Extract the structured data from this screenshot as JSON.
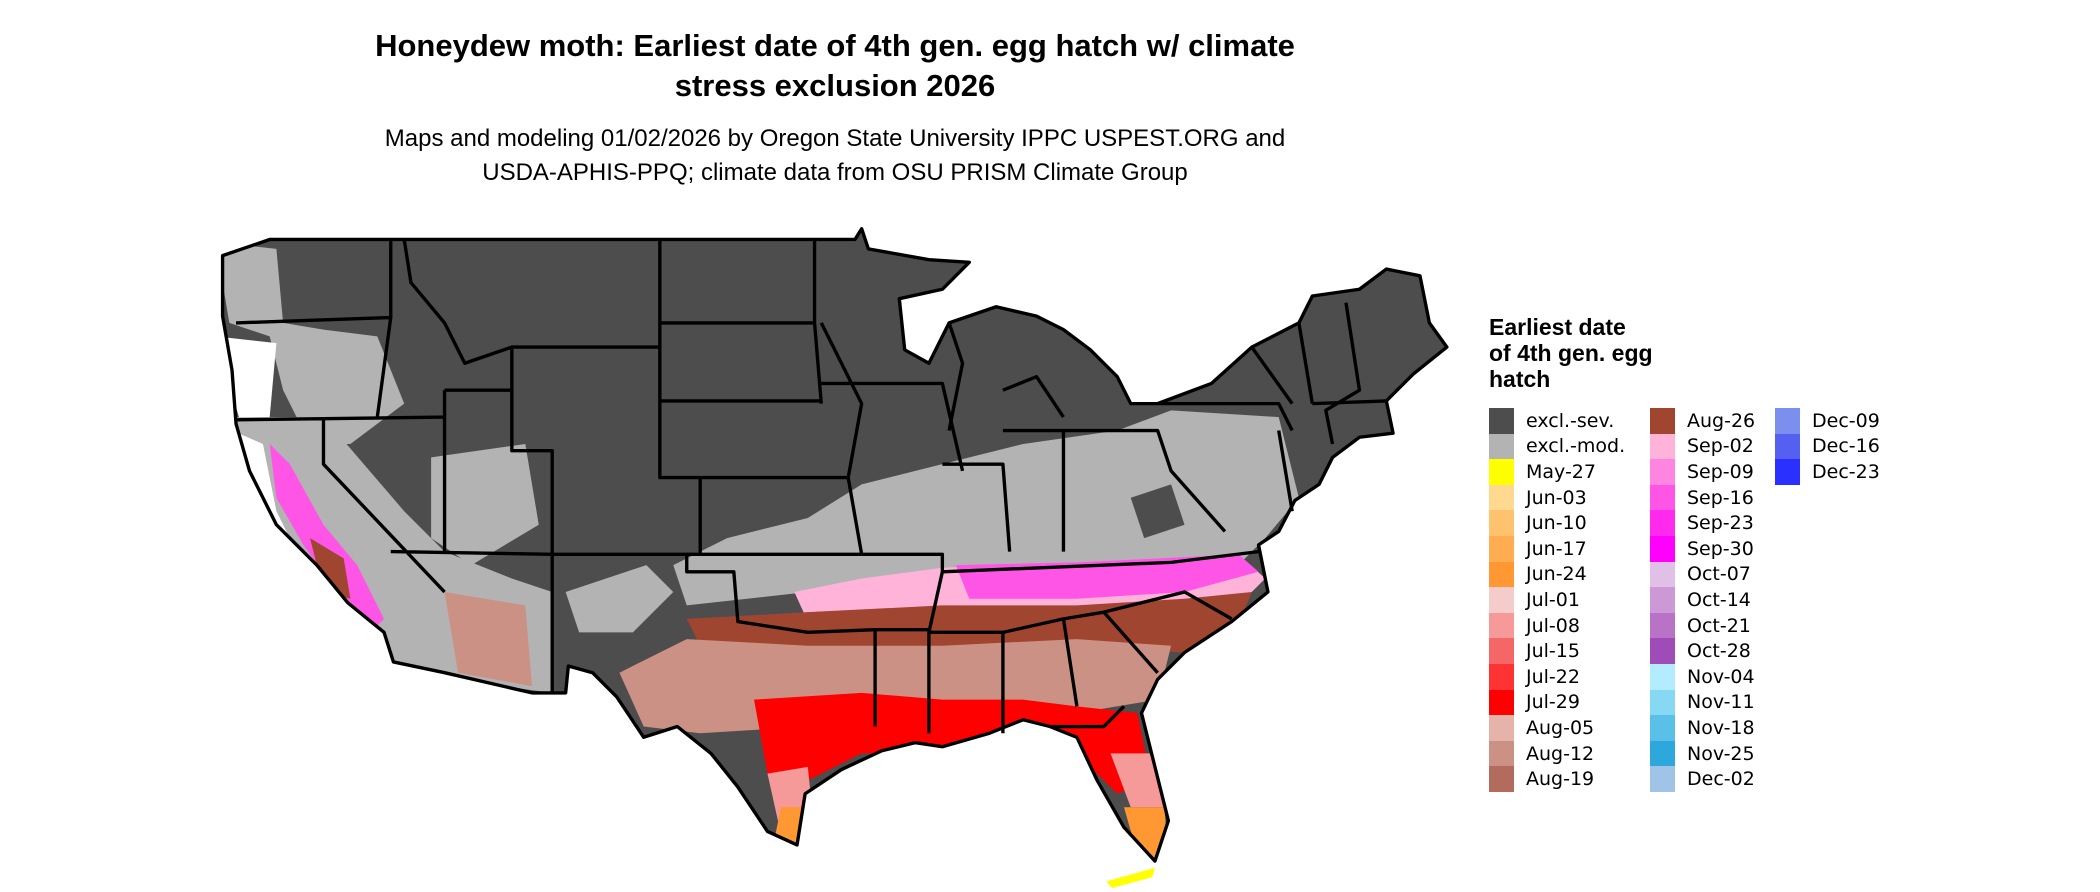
{
  "title": "Honeydew moth: Earliest date of 4th gen. egg hatch w/ climate stress exclusion 2026",
  "title_lines": [
    "Honeydew moth: Earliest date of 4th gen. egg hatch w/ climate",
    "stress exclusion 2026"
  ],
  "subtitle_lines": [
    "Maps and modeling 01/02/2026 by Oregon State University IPPC USPEST.ORG and",
    "USDA-APHIS-PPQ; climate data from OSU PRISM Climate Group"
  ],
  "legend": {
    "title_lines": [
      "Earliest date",
      "of 4th gen. egg",
      "hatch"
    ],
    "columns": [
      [
        {
          "label": "excl.-sev.",
          "color": "#4d4d4d"
        },
        {
          "label": "excl.-mod.",
          "color": "#b3b3b3"
        },
        {
          "label": "May-27",
          "color": "#ffff00"
        },
        {
          "label": "Jun-03",
          "color": "#ffd98f"
        },
        {
          "label": "Jun-10",
          "color": "#ffc26e"
        },
        {
          "label": "Jun-17",
          "color": "#ffad50"
        },
        {
          "label": "Jun-24",
          "color": "#ff9833"
        },
        {
          "label": "Jul-01",
          "color": "#f5cccc"
        },
        {
          "label": "Jul-08",
          "color": "#f59999"
        },
        {
          "label": "Jul-15",
          "color": "#f56666"
        },
        {
          "label": "Jul-22",
          "color": "#ff3333"
        },
        {
          "label": "Jul-29",
          "color": "#ff0000"
        },
        {
          "label": "Aug-05",
          "color": "#e6b3aa"
        },
        {
          "label": "Aug-12",
          "color": "#cc9185"
        },
        {
          "label": "Aug-19",
          "color": "#b36b5e"
        }
      ],
      [
        {
          "label": "Aug-26",
          "color": "#a04530"
        },
        {
          "label": "Sep-02",
          "color": "#ffb3d9"
        },
        {
          "label": "Sep-09",
          "color": "#ff85e0"
        },
        {
          "label": "Sep-16",
          "color": "#ff55e6"
        },
        {
          "label": "Sep-23",
          "color": "#ff2aee"
        },
        {
          "label": "Sep-30",
          "color": "#ff00ff"
        },
        {
          "label": "Oct-07",
          "color": "#e0c0e6"
        },
        {
          "label": "Oct-14",
          "color": "#cc99d6"
        },
        {
          "label": "Oct-21",
          "color": "#b873c7"
        },
        {
          "label": "Oct-28",
          "color": "#a04cb8"
        },
        {
          "label": "Nov-04",
          "color": "#b3ecff"
        },
        {
          "label": "Nov-11",
          "color": "#87d8f2"
        },
        {
          "label": "Nov-18",
          "color": "#5bc0e8"
        },
        {
          "label": "Nov-25",
          "color": "#2ea8dc"
        },
        {
          "label": "Dec-02",
          "color": "#a0c4e8"
        }
      ],
      [
        {
          "label": "Dec-09",
          "color": "#7a8fee"
        },
        {
          "label": "Dec-16",
          "color": "#5560f0"
        },
        {
          "label": "Dec-23",
          "color": "#2a30ff"
        }
      ]
    ]
  }
}
